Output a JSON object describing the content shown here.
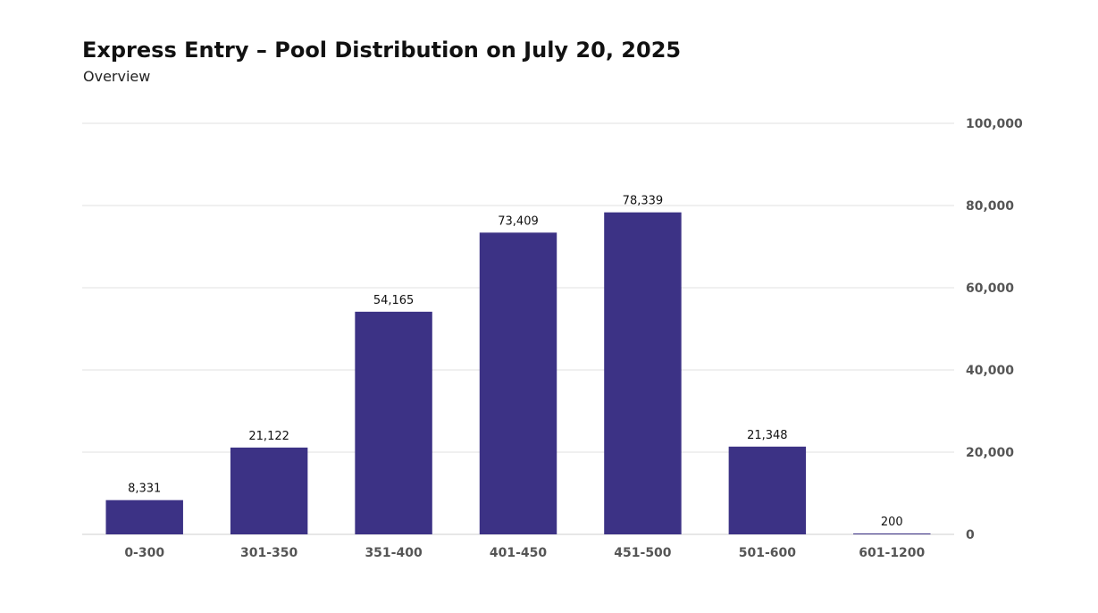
{
  "chart_data": {
    "type": "bar",
    "title": "Express Entry – Pool Distribution on July 20, 2025",
    "subtitle": "Overview",
    "xlabel": "",
    "ylabel": "",
    "categories": [
      "0-300",
      "301-350",
      "351-400",
      "401-450",
      "451-500",
      "501-600",
      "601-1200"
    ],
    "values": [
      8331,
      21122,
      54165,
      73409,
      78339,
      21348,
      200
    ],
    "data_labels": [
      "8,331",
      "21,122",
      "54,165",
      "73,409",
      "78,339",
      "21,348",
      "200"
    ],
    "ylim": [
      0,
      100000
    ],
    "yticks": [
      0,
      20000,
      40000,
      60000,
      80000,
      100000
    ],
    "ytick_labels": [
      "0",
      "20,000",
      "40,000",
      "60,000",
      "80,000",
      "100,000"
    ],
    "y_axis_position": "right",
    "grid": true,
    "legend": "none",
    "bar_color": "#3c3285"
  }
}
